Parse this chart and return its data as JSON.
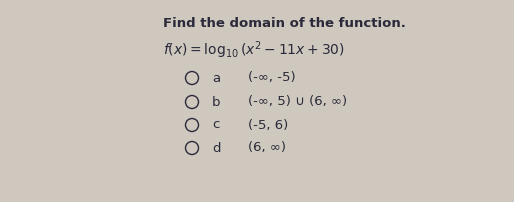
{
  "background_color": "#cec8be",
  "title": "Find the domain of the function.",
  "title_fontsize": 9.5,
  "title_fontweight": "bold",
  "title_color": "#1a1a1a",
  "function_fontsize": 10,
  "options": [
    {
      "letter": "a",
      "text": "(-∞, -5)"
    },
    {
      "letter": "b",
      "text": "(-∞, 5) ∪ (6, ∞)"
    },
    {
      "letter": "c",
      "text": "(-5, 6)"
    },
    {
      "letter": "d",
      "text": "(6, ∞)"
    }
  ],
  "text_color": "#2a2a3a",
  "option_fontsize": 9.5,
  "circle_color": "#2a2a3a"
}
